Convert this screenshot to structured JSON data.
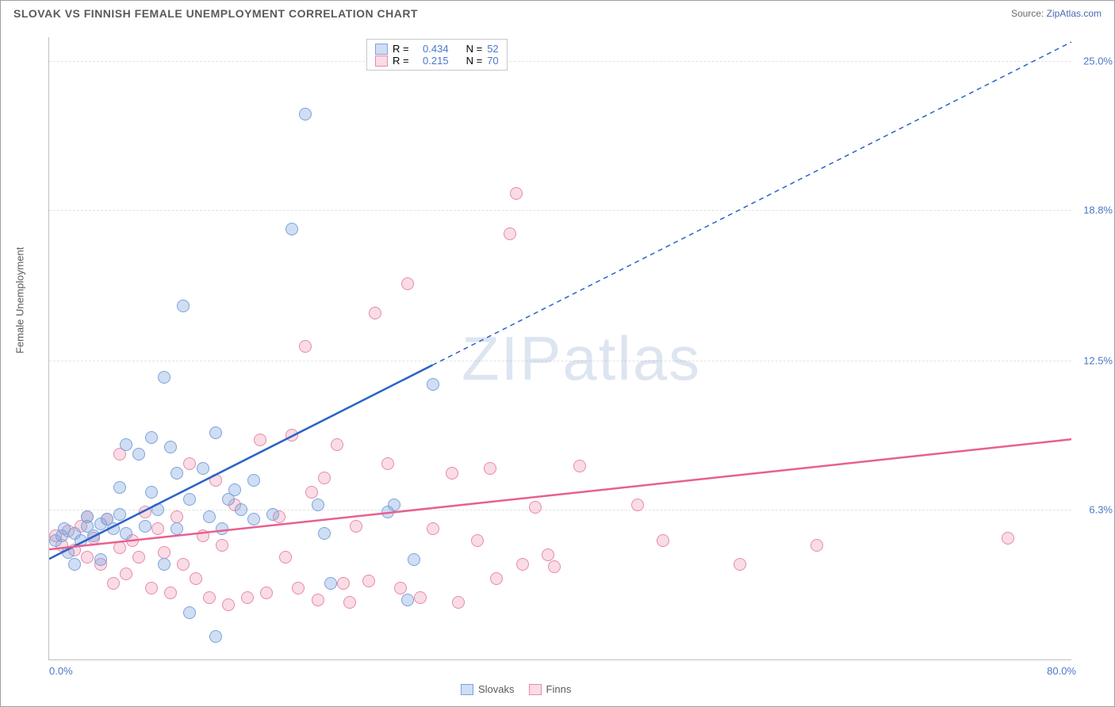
{
  "header": {
    "title": "SLOVAK VS FINNISH FEMALE UNEMPLOYMENT CORRELATION CHART",
    "source_label": "Source:",
    "source_value": "ZipAtlas.com"
  },
  "axes": {
    "y_title": "Female Unemployment",
    "x_min": 0.0,
    "x_max": 80.0,
    "y_min": 0.0,
    "y_max": 26.0,
    "x_ticks": [
      {
        "value": 0.0,
        "label": "0.0%"
      },
      {
        "value": 80.0,
        "label": "80.0%"
      }
    ],
    "y_ticks": [
      {
        "value": 6.3,
        "label": "6.3%"
      },
      {
        "value": 12.5,
        "label": "12.5%"
      },
      {
        "value": 18.8,
        "label": "18.8%"
      },
      {
        "value": 25.0,
        "label": "25.0%"
      }
    ]
  },
  "watermark": {
    "text_zip": "ZIP",
    "text_atlas": "atlas"
  },
  "legend_stats": {
    "slovaks": {
      "r_label": "R =",
      "r_value": "0.434",
      "n_label": "N =",
      "n_value": "52"
    },
    "finns": {
      "r_label": "R =",
      "r_value": "0.215",
      "n_label": "N =",
      "n_value": "70"
    }
  },
  "legend_bottom": {
    "slovaks_label": "Slovaks",
    "finns_label": "Finns"
  },
  "colors": {
    "slovak_fill": "rgba(120,160,220,0.35)",
    "slovak_stroke": "#7aa3dc",
    "slovak_line": "#2b63c6",
    "finn_fill": "rgba(235,140,170,0.30)",
    "finn_stroke": "#e88aa8",
    "finn_line": "#e8608f",
    "tick_text": "#4a78c8",
    "grid": "#e3e3e3"
  },
  "trend_lines": {
    "slovaks": {
      "x1": 0,
      "y1": 4.2,
      "x_solid_end": 30,
      "x2": 80,
      "y2": 25.8,
      "dash": "6,5"
    },
    "finns": {
      "x1": 0,
      "y1": 4.6,
      "x2": 80,
      "y2": 9.2
    }
  },
  "series": {
    "slovaks": [
      {
        "x": 0.5,
        "y": 5.0
      },
      {
        "x": 1.0,
        "y": 5.2
      },
      {
        "x": 1.2,
        "y": 5.5
      },
      {
        "x": 1.5,
        "y": 4.5
      },
      {
        "x": 2.0,
        "y": 5.3
      },
      {
        "x": 2.0,
        "y": 4.0
      },
      {
        "x": 2.5,
        "y": 5.0
      },
      {
        "x": 3.0,
        "y": 5.6
      },
      {
        "x": 3.0,
        "y": 6.0
      },
      {
        "x": 3.5,
        "y": 5.2
      },
      {
        "x": 4.0,
        "y": 4.2
      },
      {
        "x": 4.0,
        "y": 5.7
      },
      {
        "x": 4.5,
        "y": 5.9
      },
      {
        "x": 5.0,
        "y": 5.5
      },
      {
        "x": 5.5,
        "y": 6.1
      },
      {
        "x": 5.5,
        "y": 7.2
      },
      {
        "x": 6.0,
        "y": 5.3
      },
      {
        "x": 6.0,
        "y": 9.0
      },
      {
        "x": 7.0,
        "y": 8.6
      },
      {
        "x": 7.5,
        "y": 5.6
      },
      {
        "x": 8.0,
        "y": 7.0
      },
      {
        "x": 8.0,
        "y": 9.3
      },
      {
        "x": 8.5,
        "y": 6.3
      },
      {
        "x": 9.0,
        "y": 11.8
      },
      {
        "x": 9.0,
        "y": 4.0
      },
      {
        "x": 9.5,
        "y": 8.9
      },
      {
        "x": 10.0,
        "y": 5.5
      },
      {
        "x": 10.0,
        "y": 7.8
      },
      {
        "x": 10.5,
        "y": 14.8
      },
      {
        "x": 11.0,
        "y": 2.0
      },
      {
        "x": 11.0,
        "y": 6.7
      },
      {
        "x": 12.0,
        "y": 8.0
      },
      {
        "x": 12.5,
        "y": 6.0
      },
      {
        "x": 13.0,
        "y": 9.5
      },
      {
        "x": 13.0,
        "y": 1.0
      },
      {
        "x": 13.5,
        "y": 5.5
      },
      {
        "x": 14.0,
        "y": 6.7
      },
      {
        "x": 14.5,
        "y": 7.1
      },
      {
        "x": 15.0,
        "y": 6.3
      },
      {
        "x": 16.0,
        "y": 5.9
      },
      {
        "x": 16.0,
        "y": 7.5
      },
      {
        "x": 17.5,
        "y": 6.1
      },
      {
        "x": 19.0,
        "y": 18.0
      },
      {
        "x": 20.0,
        "y": 22.8
      },
      {
        "x": 21.0,
        "y": 6.5
      },
      {
        "x": 21.5,
        "y": 5.3
      },
      {
        "x": 22.0,
        "y": 3.2
      },
      {
        "x": 26.5,
        "y": 6.2
      },
      {
        "x": 27.0,
        "y": 6.5
      },
      {
        "x": 28.0,
        "y": 2.5
      },
      {
        "x": 28.5,
        "y": 4.2
      },
      {
        "x": 30.0,
        "y": 11.5
      }
    ],
    "finns": [
      {
        "x": 0.5,
        "y": 5.2
      },
      {
        "x": 1.0,
        "y": 4.8
      },
      {
        "x": 1.5,
        "y": 5.4
      },
      {
        "x": 2.0,
        "y": 4.6
      },
      {
        "x": 2.5,
        "y": 5.6
      },
      {
        "x": 3.0,
        "y": 4.3
      },
      {
        "x": 3.0,
        "y": 6.0
      },
      {
        "x": 3.5,
        "y": 5.1
      },
      {
        "x": 4.0,
        "y": 4.0
      },
      {
        "x": 4.5,
        "y": 5.9
      },
      {
        "x": 5.0,
        "y": 3.2
      },
      {
        "x": 5.5,
        "y": 4.7
      },
      {
        "x": 5.5,
        "y": 8.6
      },
      {
        "x": 6.0,
        "y": 3.6
      },
      {
        "x": 6.5,
        "y": 5.0
      },
      {
        "x": 7.0,
        "y": 4.3
      },
      {
        "x": 7.5,
        "y": 6.2
      },
      {
        "x": 8.0,
        "y": 3.0
      },
      {
        "x": 8.5,
        "y": 5.5
      },
      {
        "x": 9.0,
        "y": 4.5
      },
      {
        "x": 9.5,
        "y": 2.8
      },
      {
        "x": 10.0,
        "y": 6.0
      },
      {
        "x": 10.5,
        "y": 4.0
      },
      {
        "x": 11.0,
        "y": 8.2
      },
      {
        "x": 11.5,
        "y": 3.4
      },
      {
        "x": 12.0,
        "y": 5.2
      },
      {
        "x": 12.5,
        "y": 2.6
      },
      {
        "x": 13.5,
        "y": 4.8
      },
      {
        "x": 14.0,
        "y": 2.3
      },
      {
        "x": 14.5,
        "y": 6.5
      },
      {
        "x": 15.5,
        "y": 2.6
      },
      {
        "x": 16.5,
        "y": 9.2
      },
      {
        "x": 17.0,
        "y": 2.8
      },
      {
        "x": 18.0,
        "y": 6.0
      },
      {
        "x": 18.5,
        "y": 4.3
      },
      {
        "x": 19.0,
        "y": 9.4
      },
      {
        "x": 19.5,
        "y": 3.0
      },
      {
        "x": 20.0,
        "y": 13.1
      },
      {
        "x": 21.0,
        "y": 2.5
      },
      {
        "x": 21.5,
        "y": 7.6
      },
      {
        "x": 22.5,
        "y": 9.0
      },
      {
        "x": 23.0,
        "y": 3.2
      },
      {
        "x": 23.5,
        "y": 2.4
      },
      {
        "x": 24.0,
        "y": 5.6
      },
      {
        "x": 25.0,
        "y": 3.3
      },
      {
        "x": 25.5,
        "y": 14.5
      },
      {
        "x": 26.5,
        "y": 8.2
      },
      {
        "x": 27.5,
        "y": 3.0
      },
      {
        "x": 28.0,
        "y": 15.7
      },
      {
        "x": 29.0,
        "y": 2.6
      },
      {
        "x": 30.0,
        "y": 5.5
      },
      {
        "x": 31.5,
        "y": 7.8
      },
      {
        "x": 32.0,
        "y": 2.4
      },
      {
        "x": 33.5,
        "y": 5.0
      },
      {
        "x": 34.5,
        "y": 8.0
      },
      {
        "x": 35.0,
        "y": 3.4
      },
      {
        "x": 36.0,
        "y": 17.8
      },
      {
        "x": 36.5,
        "y": 19.5
      },
      {
        "x": 37.0,
        "y": 4.0
      },
      {
        "x": 38.0,
        "y": 6.4
      },
      {
        "x": 39.0,
        "y": 4.4
      },
      {
        "x": 39.5,
        "y": 3.9
      },
      {
        "x": 41.5,
        "y": 8.1
      },
      {
        "x": 46.0,
        "y": 6.5
      },
      {
        "x": 48.0,
        "y": 5.0
      },
      {
        "x": 54.0,
        "y": 4.0
      },
      {
        "x": 60.0,
        "y": 4.8
      },
      {
        "x": 75.0,
        "y": 5.1
      },
      {
        "x": 13.0,
        "y": 7.5
      },
      {
        "x": 20.5,
        "y": 7.0
      }
    ]
  }
}
